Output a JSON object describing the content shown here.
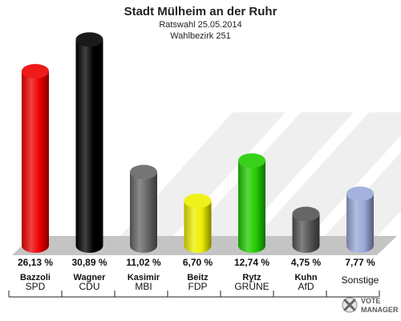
{
  "title": "Stadt Mülheim an der Ruhr",
  "subtitle": "Ratswahl 25.05.2014",
  "subtitle2": "Wahlbezirk 251",
  "logo": {
    "line1": "VOTE",
    "line2": "MANAGER"
  },
  "chart_data": {
    "type": "bar",
    "title": "Stadt Mülheim an der Ruhr",
    "subtitle": "Ratswahl 25.05.2014 / Wahlbezirk 251",
    "unit": "%",
    "ylim": [
      0,
      32
    ],
    "categories": [
      "SPD",
      "CDU",
      "MBI",
      "FDP",
      "GRÜNE",
      "AfD",
      "Sonstige"
    ],
    "candidates": [
      "Bazzoli",
      "Wagner",
      "Kasimir",
      "Beitz",
      "Rytz",
      "Kuhn",
      ""
    ],
    "values": [
      26.13,
      30.89,
      11.02,
      6.7,
      12.74,
      4.75,
      7.77
    ],
    "value_labels": [
      "26,13 %",
      "30,89 %",
      "11,02 %",
      "6,70 %",
      "12,74 %",
      "4,75 %",
      "7,77 %"
    ],
    "colors": [
      "#ee0000",
      "#000000",
      "#666666",
      "#eeee00",
      "#22cc00",
      "#555555",
      "#9aa8d8"
    ],
    "grid": false,
    "legend": "none"
  }
}
